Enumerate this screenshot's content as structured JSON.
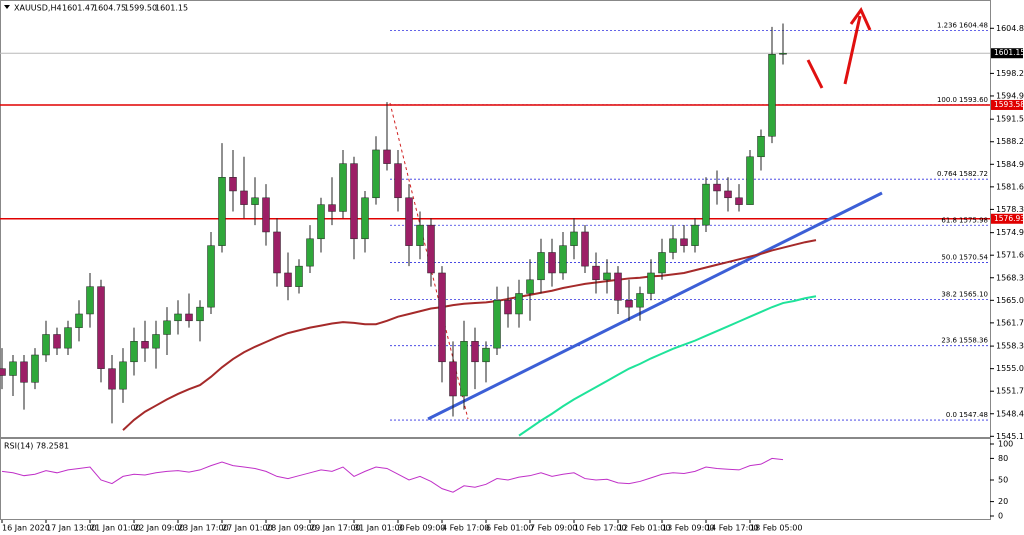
{
  "chart_data": {
    "type": "candlestick",
    "symbol": "XAUUSD,H4",
    "header_values": [
      1601.47,
      1604.75,
      1599.5,
      1601.15
    ],
    "header_value_labels": [
      "1601.47",
      "1604.75",
      "1599.50",
      "1601.15"
    ],
    "categories": [
      "16 Jan 2020",
      null,
      null,
      null,
      "17 Jan 13:00",
      null,
      null,
      null,
      "21 Jan 01:00",
      null,
      null,
      null,
      "22 Jan 09:00",
      null,
      null,
      null,
      "23 Jan 17:00",
      null,
      null,
      null,
      "27 Jan 01:00",
      null,
      null,
      null,
      "28 Jan 09:00",
      null,
      null,
      null,
      "29 Jan 17:00",
      null,
      null,
      null,
      "31 Jan 01:00",
      null,
      null,
      null,
      "3 Feb 09:00",
      null,
      null,
      null,
      "4 Feb 17:00",
      null,
      null,
      null,
      "6 Feb 01:00",
      null,
      null,
      null,
      "7 Feb 09:00",
      null,
      null,
      null,
      "10 Feb 17:00",
      null,
      null,
      null,
      "12 Feb 01:00",
      null,
      null,
      null,
      "13 Feb 09:00",
      null,
      null,
      null,
      "14 Feb 17:00",
      null,
      null,
      null,
      "18 Feb 05:00",
      null,
      null,
      null,
      null,
      null,
      null
    ],
    "open": [
      1555,
      1554,
      1556,
      1553,
      1557,
      1560,
      1558,
      1561,
      1563,
      1567,
      1555,
      1552,
      1556,
      1559,
      1558,
      1560,
      1562,
      1563,
      1562,
      1564,
      1573,
      1583,
      1581,
      1579,
      1580,
      1575,
      1569,
      1567,
      1570,
      1574,
      1579,
      1578,
      1585,
      1574,
      1580,
      1587,
      1585,
      1580,
      1573,
      1576,
      1569,
      1556,
      1551,
      1559,
      1556,
      1558,
      1565,
      1563,
      1566,
      1568,
      1572,
      1569,
      1573,
      1575,
      1570,
      1568,
      1569,
      1565,
      1564,
      1566,
      1569,
      1572,
      1574,
      1573,
      1576,
      1582,
      1581,
      1580,
      1579,
      1586,
      1589,
      1601,
      null,
      null,
      null
    ],
    "high": [
      1558,
      1557,
      1557,
      1558,
      1562,
      1561,
      1562,
      1565,
      1569,
      1568,
      1557,
      1558,
      1561,
      1562,
      1562,
      1564,
      1565,
      1566,
      1565,
      1575,
      1588,
      1587,
      1586,
      1583,
      1582,
      1577,
      1572,
      1571,
      1576,
      1580,
      1583,
      1587,
      1586,
      1581,
      1589,
      1594,
      1587,
      1582,
      1578,
      1577,
      1570,
      1559,
      1562,
      1561,
      1559,
      1567,
      1567,
      1568,
      1571,
      1574,
      1574,
      1575,
      1577,
      1576,
      1572,
      1571,
      1570,
      1568,
      1567,
      1571,
      1574,
      1576,
      1576,
      1577,
      1583,
      1584,
      1583,
      1582,
      1587,
      1590,
      1605,
      1605.5,
      null,
      null,
      null
    ],
    "low": [
      1552,
      1551,
      1549,
      1552,
      1556,
      1557,
      1557,
      1559,
      1561,
      1553,
      1547,
      1550,
      1554,
      1556,
      1555,
      1557,
      1560,
      1561,
      1559,
      1563,
      1572,
      1578,
      1577,
      1576,
      1573,
      1567,
      1565,
      1566,
      1569,
      1572,
      1576,
      1577,
      1571,
      1572,
      1579,
      1584,
      1578,
      1570,
      1571,
      1567,
      1553,
      1548,
      1549,
      1552,
      1553,
      1557,
      1561,
      1561,
      1562,
      1566,
      1567,
      1568,
      1571,
      1569,
      1566,
      1566,
      1563,
      1562,
      1562,
      1565,
      1568,
      1571,
      1572,
      1572,
      1575,
      1579,
      1578,
      1578,
      1579,
      1584,
      1588,
      1599.5,
      null,
      null,
      null
    ],
    "close": [
      1554,
      1556,
      1553,
      1557,
      1560,
      1558,
      1561,
      1563,
      1567,
      1555,
      1552,
      1556,
      1559,
      1558,
      1560,
      1562,
      1563,
      1562,
      1564,
      1573,
      1583,
      1581,
      1579,
      1580,
      1575,
      1569,
      1567,
      1570,
      1574,
      1579,
      1578,
      1585,
      1574,
      1580,
      1587,
      1585,
      1580,
      1573,
      1576,
      1569,
      1556,
      1551,
      1559,
      1556,
      1558,
      1565,
      1563,
      1566,
      1568,
      1572,
      1569,
      1573,
      1575,
      1570,
      1568,
      1569,
      1565,
      1564,
      1566,
      1569,
      1572,
      1574,
      1573,
      1576,
      1582,
      1581,
      1580,
      1579,
      1586,
      1589,
      1601,
      1601.15,
      null,
      null,
      null
    ],
    "up_color": "#2fa83a",
    "down_color": "#9c1f66",
    "moving_averages": [
      {
        "color": "#a52a2a",
        "values": [
          null,
          null,
          null,
          null,
          null,
          null,
          null,
          null,
          null,
          null,
          null,
          1546,
          1547.5,
          1548.7,
          1549.6,
          1550.5,
          1551.3,
          1552,
          1552.6,
          1553.8,
          1555.2,
          1556.4,
          1557.4,
          1558.2,
          1558.9,
          1559.6,
          1560.2,
          1560.6,
          1561,
          1561.3,
          1561.6,
          1561.8,
          1561.7,
          1561.5,
          1561.5,
          1562,
          1562.6,
          1563,
          1563.4,
          1563.8,
          1564,
          1564.3,
          1564.5,
          1564.6,
          1564.7,
          1564.9,
          1565.2,
          1565.5,
          1565.8,
          1566.1,
          1566.4,
          1566.8,
          1567.1,
          1567.4,
          1567.6,
          1567.8,
          1568,
          1568.2,
          1568.3,
          1568.5,
          1568.6,
          1568.8,
          1569,
          1569.4,
          1569.8,
          1570.2,
          1570.6,
          1571,
          1571.4,
          1571.8,
          1572.3,
          1572.7,
          1573.1,
          1573.5,
          1573.8
        ]
      },
      {
        "color": "#1fe39a",
        "values": [
          null,
          null,
          null,
          null,
          null,
          null,
          null,
          null,
          null,
          null,
          null,
          null,
          null,
          null,
          null,
          null,
          null,
          null,
          null,
          null,
          null,
          null,
          null,
          null,
          null,
          null,
          null,
          null,
          null,
          null,
          null,
          null,
          null,
          null,
          null,
          null,
          null,
          null,
          null,
          null,
          null,
          null,
          null,
          null,
          null,
          null,
          null,
          1545.2,
          1546.3,
          1547.4,
          1548.4,
          1549.5,
          1550.5,
          1551.4,
          1552.3,
          1553.2,
          1554.1,
          1555,
          1555.7,
          1556.5,
          1557.2,
          1557.9,
          1558.5,
          1559.1,
          1559.8,
          1560.5,
          1561.2,
          1561.9,
          1562.6,
          1563.3,
          1564,
          1564.6,
          1564.9,
          1565.3,
          1565.6
        ]
      }
    ],
    "ylim": [
      1545.0,
      1608.5
    ],
    "yticks": [
      {
        "value": 1604.8,
        "label": "1604.80"
      },
      {
        "value": 1598.2,
        "label": "1598.20"
      },
      {
        "value": 1594.9,
        "label": "1594.90"
      },
      {
        "value": 1591.5,
        "label": "1591.50"
      },
      {
        "value": 1588.2,
        "label": "1588.20"
      },
      {
        "value": 1584.9,
        "label": "1584.90"
      },
      {
        "value": 1581.6,
        "label": "1581.60"
      },
      {
        "value": 1578.3,
        "label": "1578.30"
      },
      {
        "value": 1574.9,
        "label": "1574.90"
      },
      {
        "value": 1571.6,
        "label": "1571.60"
      },
      {
        "value": 1568.3,
        "label": "1568.30"
      },
      {
        "value": 1565.0,
        "label": "1565.00"
      },
      {
        "value": 1561.7,
        "label": "1561.70"
      },
      {
        "value": 1558.3,
        "label": "1558.30"
      },
      {
        "value": 1555.0,
        "label": "1555.00"
      },
      {
        "value": 1551.7,
        "label": "1551.70"
      },
      {
        "value": 1548.4,
        "label": "1548.40"
      },
      {
        "value": 1545.1,
        "label": "1545.10"
      }
    ],
    "price_lines": [
      {
        "value": 1601.15,
        "box_color": "#000000",
        "line_color": "#b8b8b8"
      },
      {
        "value": 1593.58,
        "box_color": "#e00000",
        "line_color": "#e00000"
      },
      {
        "value": 1576.93,
        "box_color": "#e00000",
        "line_color": "#e00000"
      }
    ],
    "fibonacci": {
      "color": "#3030e0",
      "levels": [
        {
          "ratio": "1.236",
          "price": 1604.48,
          "price_label": "1604.48"
        },
        {
          "ratio": "100.0",
          "price": 1593.6,
          "price_label": "1593.60"
        },
        {
          "ratio": "0.764",
          "price": 1582.72,
          "price_label": "1582.72"
        },
        {
          "ratio": "61.8",
          "price": 1575.98,
          "price_label": "1575.98"
        },
        {
          "ratio": "50.0",
          "price": 1570.54,
          "price_label": "1570.54"
        },
        {
          "ratio": "38.2",
          "price": 1565.1,
          "price_label": "1565.10"
        },
        {
          "ratio": "23.6",
          "price": 1558.36,
          "price_label": "1558.36"
        },
        {
          "ratio": "0.0",
          "price": 1547.48,
          "price_label": "1547.48"
        }
      ]
    },
    "rsi": {
      "title": "RSI(14) 78.2581",
      "color": "#c030c8",
      "ylim": [
        0,
        100
      ],
      "yticks": [
        100,
        80,
        50,
        20,
        0
      ],
      "values": [
        62,
        60,
        56,
        58,
        63,
        60,
        64,
        66,
        68,
        50,
        45,
        55,
        58,
        57,
        60,
        62,
        63,
        61,
        64,
        70,
        75,
        70,
        68,
        66,
        62,
        55,
        52,
        56,
        60,
        64,
        62,
        68,
        55,
        62,
        68,
        66,
        58,
        50,
        55,
        48,
        38,
        33,
        42,
        40,
        44,
        52,
        50,
        54,
        56,
        60,
        55,
        58,
        60,
        52,
        50,
        51,
        46,
        45,
        48,
        53,
        58,
        60,
        59,
        62,
        68,
        66,
        65,
        64,
        70,
        72,
        80,
        78.2581,
        null,
        null,
        null
      ]
    }
  }
}
